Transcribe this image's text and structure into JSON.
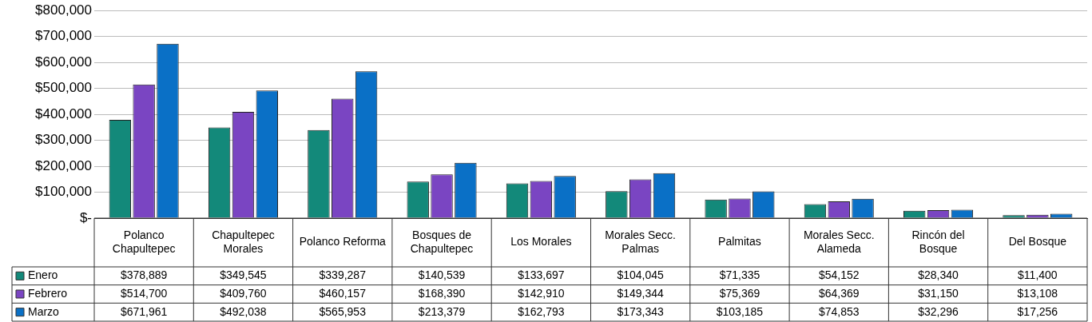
{
  "chart_data": {
    "type": "bar",
    "categories": [
      "Polanco Chapultepec",
      "Chapultepec Morales",
      "Polanco Reforma",
      "Bosques de Chapultepec",
      "Los Morales",
      "Morales Secc. Palmas",
      "Palmitas",
      "Morales Secc. Alameda",
      "Rincón del Bosque",
      "Del Bosque"
    ],
    "series": [
      {
        "name": "Enero",
        "color": "#13897a",
        "values": [
          378889,
          349545,
          339287,
          140539,
          133697,
          104045,
          71335,
          54152,
          28340,
          11400
        ],
        "value_labels": [
          "$378,889",
          "$349,545",
          "$339,287",
          "$140,539",
          "$133,697",
          "$104,045",
          "$71,335",
          "$54,152",
          "$28,340",
          "$11,400"
        ]
      },
      {
        "name": "Febrero",
        "color": "#7a45c2",
        "values": [
          514700,
          409760,
          460157,
          168390,
          142910,
          149344,
          75369,
          64369,
          31150,
          13108
        ],
        "value_labels": [
          "$514,700",
          "$409,760",
          "$460,157",
          "$168,390",
          "$142,910",
          "$149,344",
          "$75,369",
          "$64,369",
          "$31,150",
          "$13,108"
        ]
      },
      {
        "name": "Marzo",
        "color": "#0a70c6",
        "values": [
          671961,
          492038,
          565953,
          213379,
          162793,
          173343,
          103185,
          74853,
          32296,
          17256
        ],
        "value_labels": [
          "$671,961",
          "$492,038",
          "$565,953",
          "$213,379",
          "$162,793",
          "$173,343",
          "$103,185",
          "$74,853",
          "$32,296",
          "$17,256"
        ]
      }
    ],
    "ylim": [
      0,
      800000
    ],
    "yticks": [
      {
        "value": 0,
        "label": "$-"
      },
      {
        "value": 100000,
        "label": "$100,000"
      },
      {
        "value": 200000,
        "label": "$200,000"
      },
      {
        "value": 300000,
        "label": "$300,000"
      },
      {
        "value": 400000,
        "label": "$400,000"
      },
      {
        "value": 500000,
        "label": "$500,000"
      },
      {
        "value": 600000,
        "label": "$600,000"
      },
      {
        "value": 700000,
        "label": "$700,000"
      },
      {
        "value": 800000,
        "label": "$800,000"
      }
    ],
    "grid": "y",
    "legend": "bottom"
  }
}
